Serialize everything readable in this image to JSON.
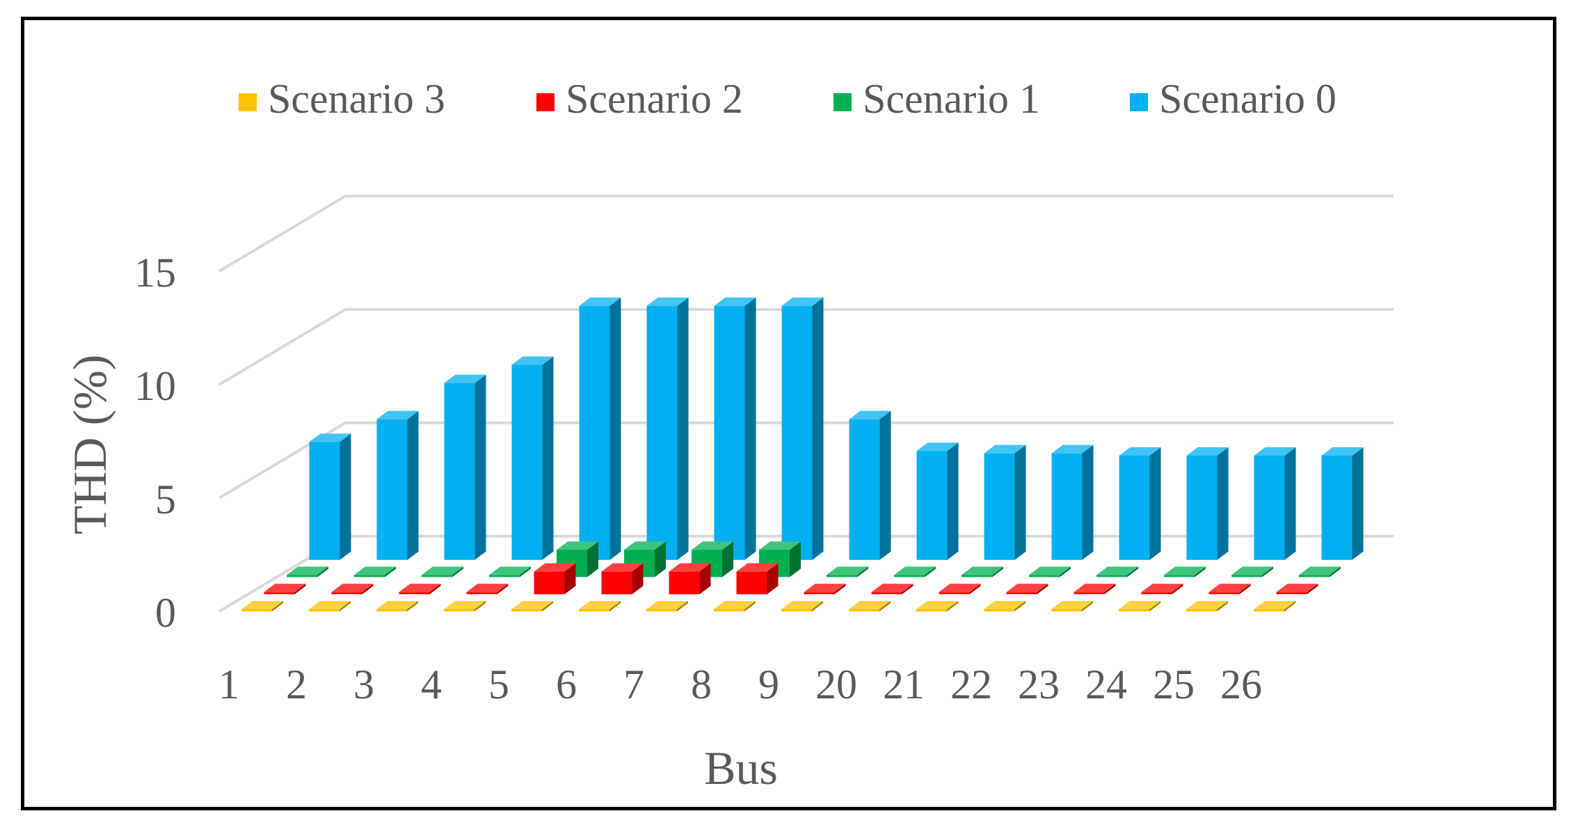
{
  "chart_data": {
    "type": "bar",
    "title": "",
    "xlabel": "Bus",
    "ylabel": "THD (%)",
    "ylim": [
      0,
      15
    ],
    "yticks": [
      "0",
      "5",
      "10",
      "15"
    ],
    "grid": true,
    "legend_position": "top",
    "categories": [
      "1",
      "2",
      "3",
      "4",
      "5",
      "6",
      "7",
      "8",
      "9",
      "20",
      "21",
      "22",
      "23",
      "24",
      "25",
      "26"
    ],
    "series": [
      {
        "name": "Scenario 3",
        "color": "#FFC000",
        "values": [
          0.05,
          0.05,
          0.05,
          0.05,
          0.05,
          0.05,
          0.05,
          0.05,
          0.05,
          0.05,
          0.05,
          0.05,
          0.05,
          0.05,
          0.05,
          0.05
        ]
      },
      {
        "name": "Scenario 2",
        "color": "#FF0000",
        "values": [
          0.05,
          0.05,
          0.05,
          0.05,
          1.0,
          1.0,
          1.0,
          1.0,
          0.05,
          0.05,
          0.05,
          0.05,
          0.05,
          0.05,
          0.05,
          0.05
        ]
      },
      {
        "name": "Scenario 1",
        "color": "#00B050",
        "values": [
          0.05,
          0.05,
          0.05,
          0.05,
          1.2,
          1.2,
          1.2,
          1.2,
          0.05,
          0.05,
          0.05,
          0.05,
          0.05,
          0.05,
          0.05,
          0.05
        ]
      },
      {
        "name": "Scenario 0",
        "color": "#00B0F0",
        "values": [
          5.2,
          6.2,
          7.8,
          8.6,
          11.2,
          11.2,
          11.2,
          11.2,
          6.2,
          4.8,
          4.7,
          4.7,
          4.6,
          4.6,
          4.6,
          4.6
        ]
      }
    ]
  }
}
